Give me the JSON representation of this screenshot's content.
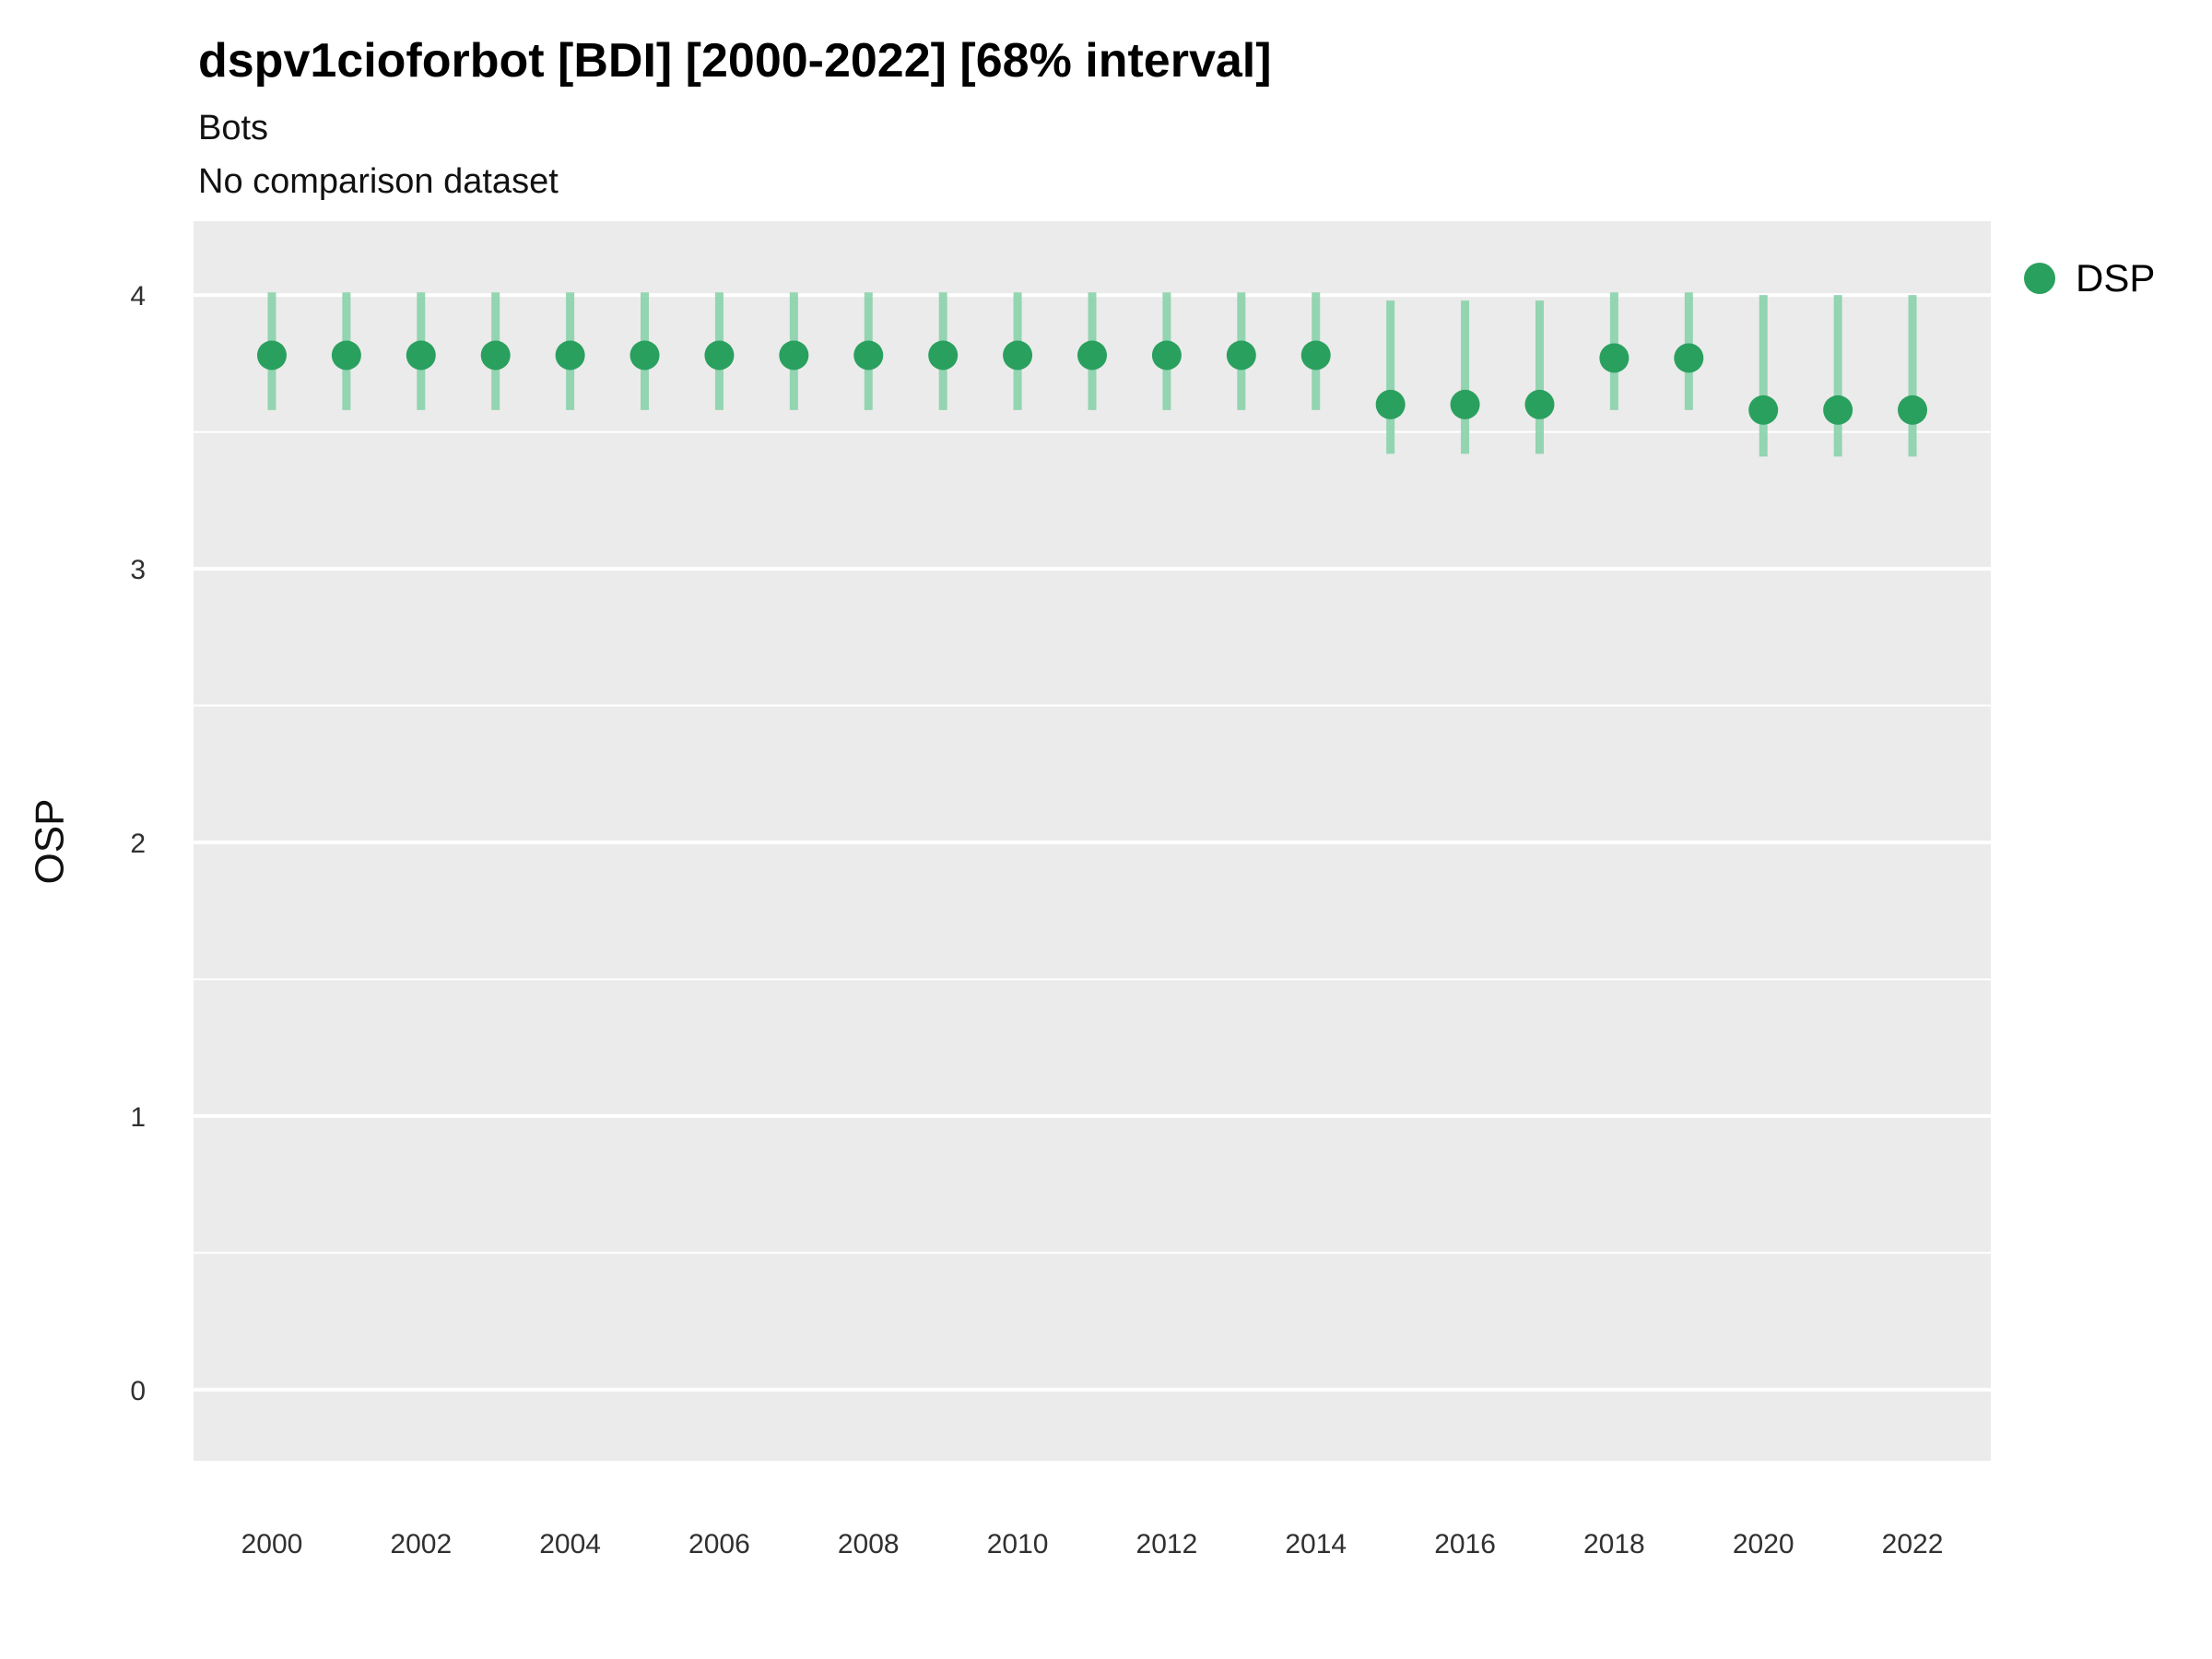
{
  "title": "dspv1cioforbot [BDI] [2000-2022] [68% interval]",
  "subtitle": "Bots",
  "subtitle2": "No comparison dataset",
  "legend": {
    "label": "DSP"
  },
  "colors": {
    "point": "#2aa05f",
    "interval": "#8ad2ab",
    "panel": "#EBEBEB",
    "grid_major": "#FFFFFF",
    "grid_minor": "#FFFFFF",
    "tick_text": "#303030"
  },
  "chart_data": {
    "type": "pointrange",
    "title": "dspv1cioforbot [BDI] [2000-2022] [68% interval]",
    "subtitle": "Bots",
    "caption": "No comparison dataset",
    "xlabel": "",
    "ylabel": "OSP",
    "legend_position": "right",
    "grid": "horizontal-only",
    "xlim": [
      1998.95,
      2023.05
    ],
    "ylim": [
      -0.26,
      4.27
    ],
    "yticks": [
      0,
      1,
      2,
      3,
      4
    ],
    "yticks_minor": [
      0.5,
      1.5,
      2.5,
      3.5
    ],
    "xticks": [
      2000,
      2002,
      2004,
      2006,
      2008,
      2010,
      2012,
      2014,
      2016,
      2018,
      2020,
      2022
    ],
    "series": [
      {
        "name": "DSP",
        "x": [
          2000,
          2001,
          2002,
          2003,
          2004,
          2005,
          2006,
          2007,
          2008,
          2009,
          2010,
          2011,
          2012,
          2013,
          2014,
          2015,
          2016,
          2017,
          2018,
          2019,
          2020,
          2021,
          2022
        ],
        "y": [
          3.78,
          3.78,
          3.78,
          3.78,
          3.78,
          3.78,
          3.78,
          3.78,
          3.78,
          3.78,
          3.78,
          3.78,
          3.78,
          3.78,
          3.78,
          3.6,
          3.6,
          3.6,
          3.77,
          3.77,
          3.58,
          3.58,
          3.58
        ],
        "ymin": [
          3.58,
          3.58,
          3.58,
          3.58,
          3.58,
          3.58,
          3.58,
          3.58,
          3.58,
          3.58,
          3.58,
          3.58,
          3.58,
          3.58,
          3.58,
          3.42,
          3.42,
          3.42,
          3.58,
          3.58,
          3.41,
          3.41,
          3.41
        ],
        "ymax": [
          4.01,
          4.01,
          4.01,
          4.01,
          4.01,
          4.01,
          4.01,
          4.01,
          4.01,
          4.01,
          4.01,
          4.01,
          4.01,
          4.01,
          4.01,
          3.98,
          3.98,
          3.98,
          4.01,
          4.01,
          4.0,
          4.0,
          4.0
        ]
      }
    ]
  }
}
